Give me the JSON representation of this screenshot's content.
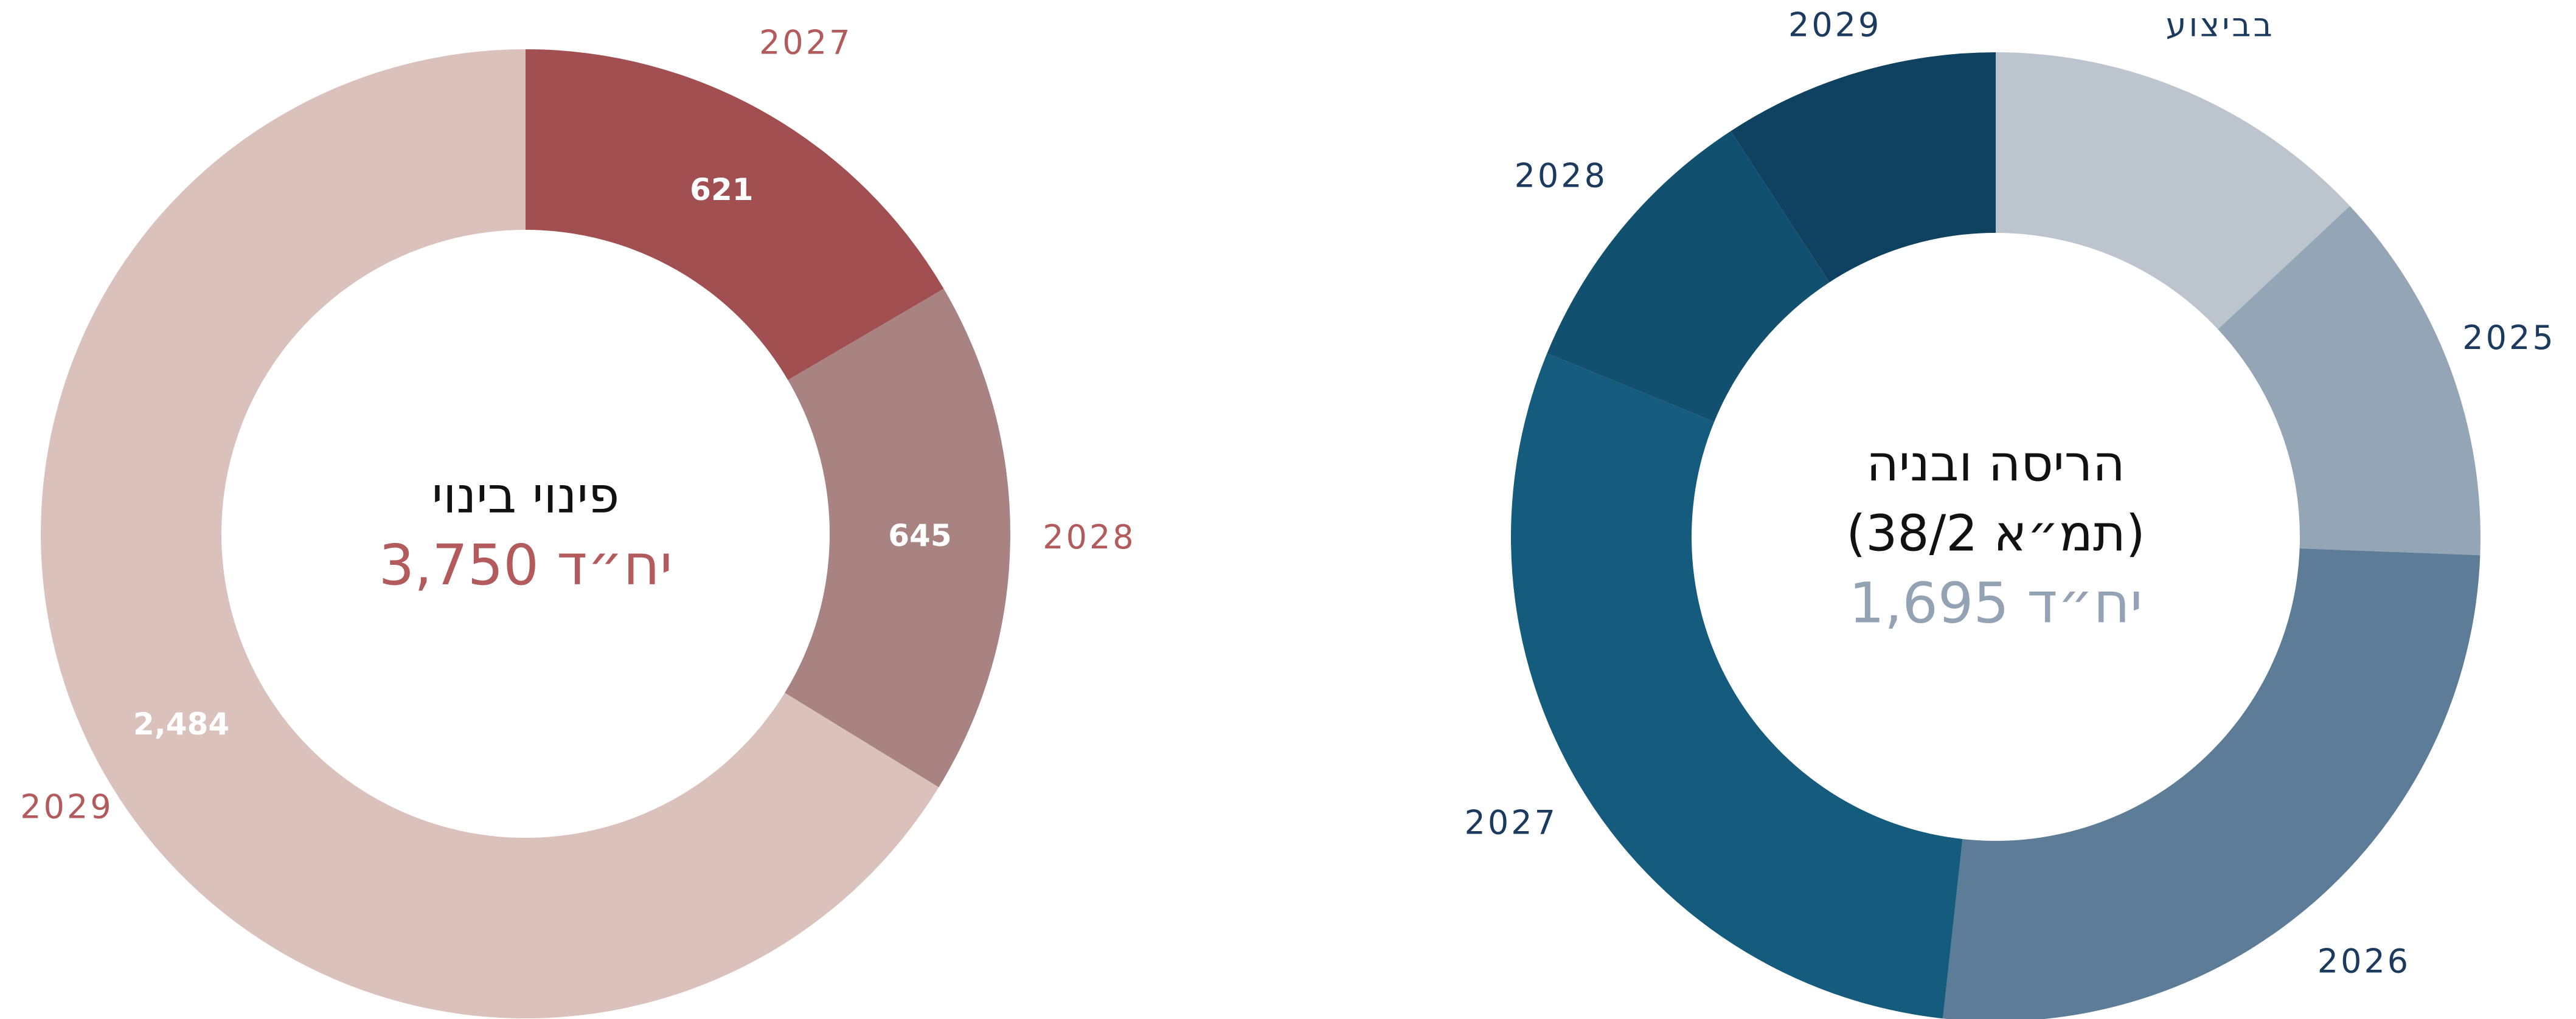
{
  "chart_data": [
    {
      "type": "donut",
      "center_title": "פינוי בינוי",
      "center_value": "3,750 יח״ד",
      "categories": [
        "2027",
        "2028",
        "2029"
      ],
      "values": [
        621,
        645,
        2484
      ],
      "value_labels": [
        "621",
        "645",
        "2,484"
      ],
      "colors": [
        "#a14f51",
        "#a88382",
        "#dbc1bc"
      ],
      "label_color": "#b25a5c",
      "center_value_color": "#b25a5c"
    },
    {
      "type": "donut",
      "center_title": "הריסה ובניה",
      "center_subtitle": "(תמ״א 38/2)",
      "center_value": "1,695 יח״ד",
      "categories": [
        "בביצוע",
        "2025",
        "2026",
        "2027",
        "2028",
        "2029"
      ],
      "values": [
        221,
        213,
        443,
        499,
        163,
        156
      ],
      "colors": [
        "#bcc4cd",
        "#94a6b6",
        "#5d7c97",
        "#155b7d",
        "#12506f",
        "#0e4260"
      ],
      "label_color": "#1b3a5e",
      "center_value_color": "#94a3b3"
    }
  ]
}
